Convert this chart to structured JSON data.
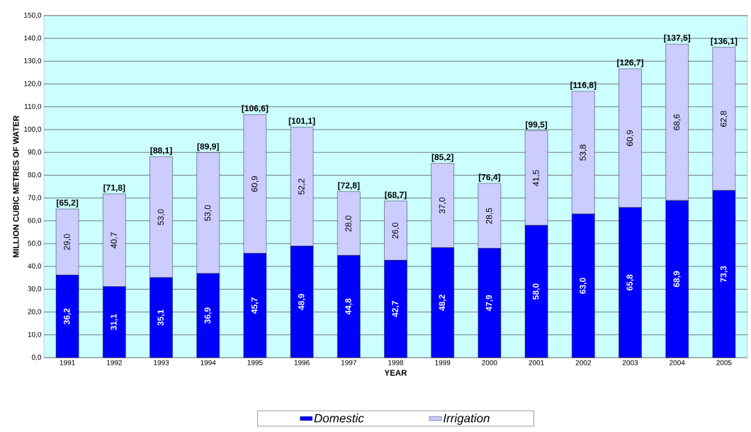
{
  "chart_data": {
    "type": "bar",
    "stacked": true,
    "xlabel": "YEAR",
    "ylabel": "MILLION CUBIC METRES OF WATER",
    "categories": [
      "1991",
      "1992",
      "1993",
      "1994",
      "1995",
      "1996",
      "1997",
      "1998",
      "1999",
      "2000",
      "2001",
      "2002",
      "2003",
      "2004",
      "2005"
    ],
    "series": [
      {
        "name": "Domestic",
        "color": "#0000ff",
        "values": [
          36.2,
          31.1,
          35.1,
          36.9,
          45.7,
          48.9,
          44.8,
          42.7,
          48.2,
          47.9,
          58.0,
          63.0,
          65.8,
          68.9,
          73.3
        ],
        "value_labels": [
          "36,2",
          "31,1",
          "35,1",
          "36,9",
          "45,7",
          "48,9",
          "44,8",
          "42,7",
          "48,2",
          "47,9",
          "58,0",
          "63,0",
          "65,8",
          "68,9",
          "73,3"
        ]
      },
      {
        "name": "Irrigation",
        "color": "#ccccff",
        "values": [
          29.0,
          40.7,
          53.0,
          53.0,
          60.9,
          52.2,
          28.0,
          26.0,
          37.0,
          28.5,
          41.5,
          53.8,
          60.9,
          68.6,
          62.8
        ],
        "value_labels": [
          "29,0",
          "40,7",
          "53,0",
          "53,0",
          "60,9",
          "52,2",
          "28,0",
          "26,0",
          "37,0",
          "28,5",
          "41,5",
          "53,8",
          "60,9",
          "68,6",
          "62,8"
        ]
      }
    ],
    "totals": [
      "[65,2]",
      "[71,8]",
      "[88,1]",
      "[89,9]",
      "[106,6]",
      "[101,1]",
      "[72,8]",
      "[68,7]",
      "[85,2]",
      "[76,4]",
      "[99,5]",
      "[116,8]",
      "[126,7]",
      "[137,5]",
      "[136,1]"
    ],
    "ylim": [
      0,
      150
    ],
    "yticks": [
      {
        "value": 0,
        "label": "0,0"
      },
      {
        "value": 10,
        "label": "10,0"
      },
      {
        "value": 20,
        "label": "20,0"
      },
      {
        "value": 30,
        "label": "30,0"
      },
      {
        "value": 40,
        "label": "40,0"
      },
      {
        "value": 50,
        "label": "50,0"
      },
      {
        "value": 60,
        "label": "60,0"
      },
      {
        "value": 70,
        "label": "70,0"
      },
      {
        "value": 80,
        "label": "80,0"
      },
      {
        "value": 90,
        "label": "90,0"
      },
      {
        "value": 100,
        "label": "100,0"
      },
      {
        "value": 110,
        "label": "110,0"
      },
      {
        "value": 120,
        "label": "120,0"
      },
      {
        "value": 130,
        "label": "130,0"
      },
      {
        "value": 140,
        "label": "140,0"
      },
      {
        "value": 150,
        "label": "150,0"
      }
    ],
    "grid": "y",
    "legend": "bottom"
  }
}
